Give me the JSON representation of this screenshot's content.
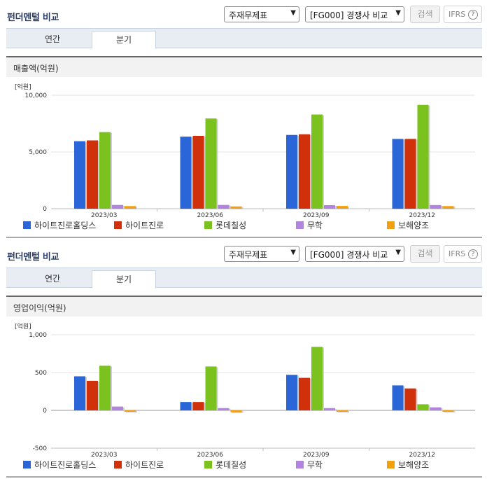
{
  "colors": {
    "s1": "#2a66d8",
    "s2": "#d0310a",
    "s3": "#7cc21e",
    "s4": "#b284e0",
    "s5": "#f0a011"
  },
  "panels": [
    {
      "title": "펀더멘털 비교",
      "select1": "주재무제표",
      "select2": "[FG000] 경쟁사 비교",
      "search_label": "검색",
      "ifrs_label": "IFRS",
      "ifrs_help": "?",
      "tabs": [
        "연간",
        "분기"
      ],
      "metric_label": "매출액(억원)",
      "unit_label": "[억원]",
      "chart_data": {
        "type": "bar",
        "categories": [
          "2023/03",
          "2023/06",
          "2023/09",
          "2023/12"
        ],
        "ylim": [
          0,
          10000
        ],
        "yticks": [
          0,
          5000,
          10000
        ],
        "ytick_labels": [
          "0",
          "5,000",
          "10,000"
        ],
        "series": [
          {
            "name": "하이트진로홀딩스",
            "values": [
              5950,
              6350,
              6500,
              6150
            ]
          },
          {
            "name": "하이트진로",
            "values": [
              6020,
              6420,
              6560,
              6150
            ]
          },
          {
            "name": "롯데칠성",
            "values": [
              6750,
              7950,
              8300,
              9150
            ]
          },
          {
            "name": "무학",
            "values": [
              330,
              330,
              310,
              320
            ]
          },
          {
            "name": "보해양조",
            "values": [
              230,
              200,
              240,
              230
            ]
          }
        ]
      }
    },
    {
      "title": "펀더멘털 비교",
      "select1": "주재무제표",
      "select2": "[FG000] 경쟁사 비교",
      "search_label": "검색",
      "ifrs_label": "IFRS",
      "ifrs_help": "?",
      "tabs": [
        "연간",
        "분기"
      ],
      "metric_label": "영업이익(억원)",
      "unit_label": "[억원]",
      "chart_data": {
        "type": "bar",
        "categories": [
          "2023/03",
          "2023/06",
          "2023/09",
          "2023/12"
        ],
        "ylim": [
          -500,
          1000
        ],
        "yticks": [
          -500,
          0,
          500,
          1000
        ],
        "ytick_labels": [
          "-500",
          "0",
          "500",
          "1,000"
        ],
        "series": [
          {
            "name": "하이트진로홀딩스",
            "values": [
              450,
              110,
              470,
              330
            ]
          },
          {
            "name": "하이트진로",
            "values": [
              390,
              110,
              430,
              290
            ]
          },
          {
            "name": "롯데칠성",
            "values": [
              590,
              580,
              840,
              80
            ]
          },
          {
            "name": "무학",
            "values": [
              50,
              30,
              30,
              40
            ]
          },
          {
            "name": "보해양조",
            "values": [
              -10,
              -25,
              -10,
              -15
            ]
          }
        ]
      }
    }
  ]
}
